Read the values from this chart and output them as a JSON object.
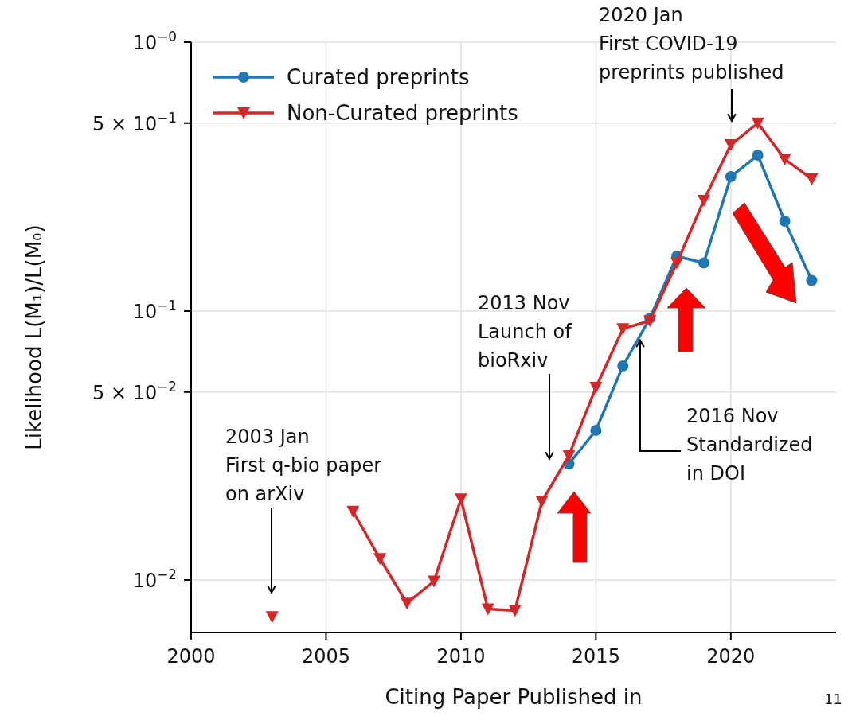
{
  "chart_data": {
    "type": "line",
    "xlabel": "Citing Paper Published in",
    "ylabel": "Likelihood L(M₁)/L(M₀)",
    "x": [
      2003,
      2004,
      2005,
      2006,
      2007,
      2008,
      2009,
      2010,
      2011,
      2012,
      2013,
      2014,
      2015,
      2016,
      2017,
      2018,
      2019,
      2020,
      2021,
      2022,
      2023
    ],
    "series": [
      {
        "name": "Curated preprints",
        "color": "#1f77b4",
        "marker": "circle",
        "values": [
          null,
          null,
          null,
          null,
          null,
          null,
          null,
          null,
          null,
          null,
          null,
          0.027,
          0.036,
          0.0625,
          0.094,
          0.16,
          0.151,
          0.316,
          0.38,
          0.216,
          0.13
        ]
      },
      {
        "name": "Non-Curated preprints",
        "color": "#d62728",
        "marker": "triangle",
        "values": [
          0.0073,
          null,
          null,
          0.018,
          0.012,
          0.0082,
          0.0099,
          0.02,
          0.0078,
          0.0077,
          0.0196,
          0.029,
          0.052,
          0.086,
          0.092,
          0.151,
          0.258,
          0.415,
          0.5,
          0.367,
          0.31
        ]
      }
    ],
    "log": "y",
    "xlim": [
      2000,
      2023.9
    ],
    "ylim": [
      0.00638,
      1
    ],
    "xticks": [
      2000,
      2005,
      2010,
      2015,
      2020
    ],
    "yticks": [
      {
        "value": 1,
        "label": "10$^{−0}$"
      },
      {
        "value": 0.5,
        "label": "5 × 10$^{−1}$"
      },
      {
        "value": 0.1,
        "label": "10$^{−1}$"
      },
      {
        "value": 0.05,
        "label": "5 × 10$^{−2}$"
      },
      {
        "value": 0.01,
        "label": "10$^{−2}$"
      }
    ],
    "grid": true,
    "legend": "top left",
    "line_style": "solid",
    "annotations": [
      "2003 Jan\nFirst q-bio paper\non arXiv",
      "2013 Nov\nLaunch of\nbioRxiv",
      {
        "text": "2016 Nov\nStandardized\nin DOI",
        "x": 2016.64,
        "y": 0.078
      },
      "2020 Jan\nFirst COVID-19\npreprints published",
      "11"
    ]
  }
}
